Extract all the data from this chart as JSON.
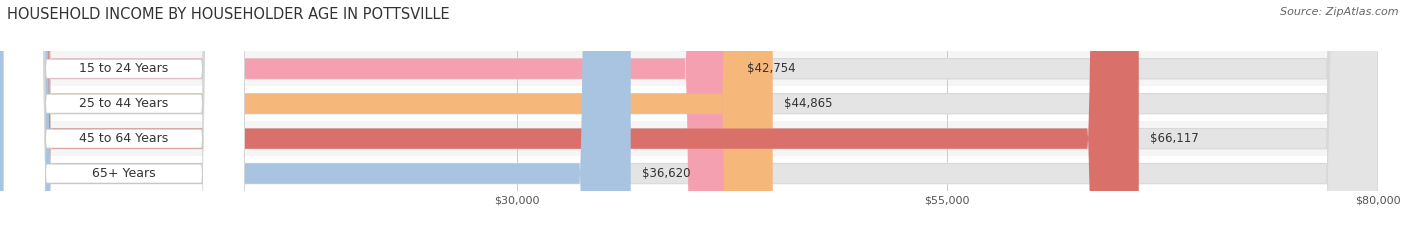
{
  "title": "HOUSEHOLD INCOME BY HOUSEHOLDER AGE IN POTTSVILLE",
  "source": "Source: ZipAtlas.com",
  "categories": [
    "15 to 24 Years",
    "25 to 44 Years",
    "45 to 64 Years",
    "65+ Years"
  ],
  "values": [
    42754,
    44865,
    66117,
    36620
  ],
  "labels": [
    "$42,754",
    "$44,865",
    "$66,117",
    "$36,620"
  ],
  "bar_colors": [
    "#f4a0b0",
    "#f5b87a",
    "#d9706a",
    "#a8c4e0"
  ],
  "xlim_min": 0,
  "xlim_max": 80000,
  "xticks": [
    30000,
    55000,
    80000
  ],
  "xtick_labels": [
    "$30,000",
    "$55,000",
    "$80,000"
  ],
  "title_fontsize": 10.5,
  "source_fontsize": 8,
  "label_fontsize": 8,
  "category_fontsize": 9,
  "value_label_fontsize": 8.5,
  "bar_height": 0.58,
  "background_color": "#ffffff",
  "row_bg_colors": [
    "#f5f5f5",
    "#ffffff",
    "#f5f5f5",
    "#ffffff"
  ],
  "bar_bg_color": "#e4e4e4",
  "grid_color": "#cccccc",
  "label_bg_color": "#ffffff"
}
